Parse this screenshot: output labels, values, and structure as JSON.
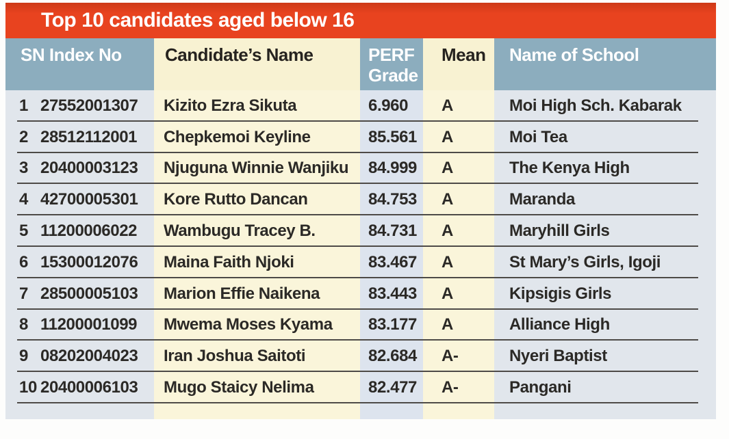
{
  "title": "Top 10 candidates aged below 16",
  "colors": {
    "accent_red": "#e8431f",
    "accent_red_dark": "#cd3917",
    "header_blue": "#8cadbe",
    "header_cream": "#f8f2d2",
    "row_blue": "#e1e6ec",
    "row_blue_alt": "#dde4ee",
    "row_cream": "#faf5da",
    "divider": "#4d4a47"
  },
  "table": {
    "headers": {
      "sn_index": "SN Index No",
      "candidate_name": "Candidate’s Name",
      "perf_line1": "PERF",
      "perf_line2": "Grade",
      "mean": "Mean",
      "school": "Name of School"
    },
    "rows": [
      {
        "sn": "1",
        "index": "27552001307",
        "name": "Kizito Ezra Sikuta",
        "perf": "6.960",
        "mean": "A",
        "school": "Moi High Sch. Kabarak"
      },
      {
        "sn": "2",
        "index": "28512112001",
        "name": "Chepkemoi Keyline",
        "perf": "85.561",
        "mean": "A",
        "school": "Moi Tea"
      },
      {
        "sn": "3",
        "index": "20400003123",
        "name": "Njuguna Winnie Wanjiku",
        "perf": "84.999",
        "mean": "A",
        "school": "The Kenya High"
      },
      {
        "sn": "4",
        "index": "42700005301",
        "name": "Kore Rutto Dancan",
        "perf": "84.753",
        "mean": "A",
        "school": "Maranda"
      },
      {
        "sn": "5",
        "index": "11200006022",
        "name": "Wambugu Tracey B.",
        "perf": "84.731",
        "mean": "A",
        "school": "Maryhill Girls"
      },
      {
        "sn": "6",
        "index": "15300012076",
        "name": "Maina Faith Njoki",
        "perf": "83.467",
        "mean": "A",
        "school": "St Mary’s Girls, Igoji"
      },
      {
        "sn": "7",
        "index": "28500005103",
        "name": "Marion Effie Naikena",
        "perf": "83.443",
        "mean": "A",
        "school": "Kipsigis Girls"
      },
      {
        "sn": "8",
        "index": "11200001099",
        "name": "Mwema Moses Kyama",
        "perf": "83.177",
        "mean": "A",
        "school": "Alliance High"
      },
      {
        "sn": "9",
        "index": "08202004023",
        "name": "Iran Joshua Saitoti",
        "perf": "82.684",
        "mean": "A-",
        "school": "Nyeri Baptist"
      },
      {
        "sn": "10",
        "index": "20400006103",
        "name": "Mugo Staicy Nelima",
        "perf": "82.477",
        "mean": "A-",
        "school": "Pangani"
      }
    ]
  }
}
